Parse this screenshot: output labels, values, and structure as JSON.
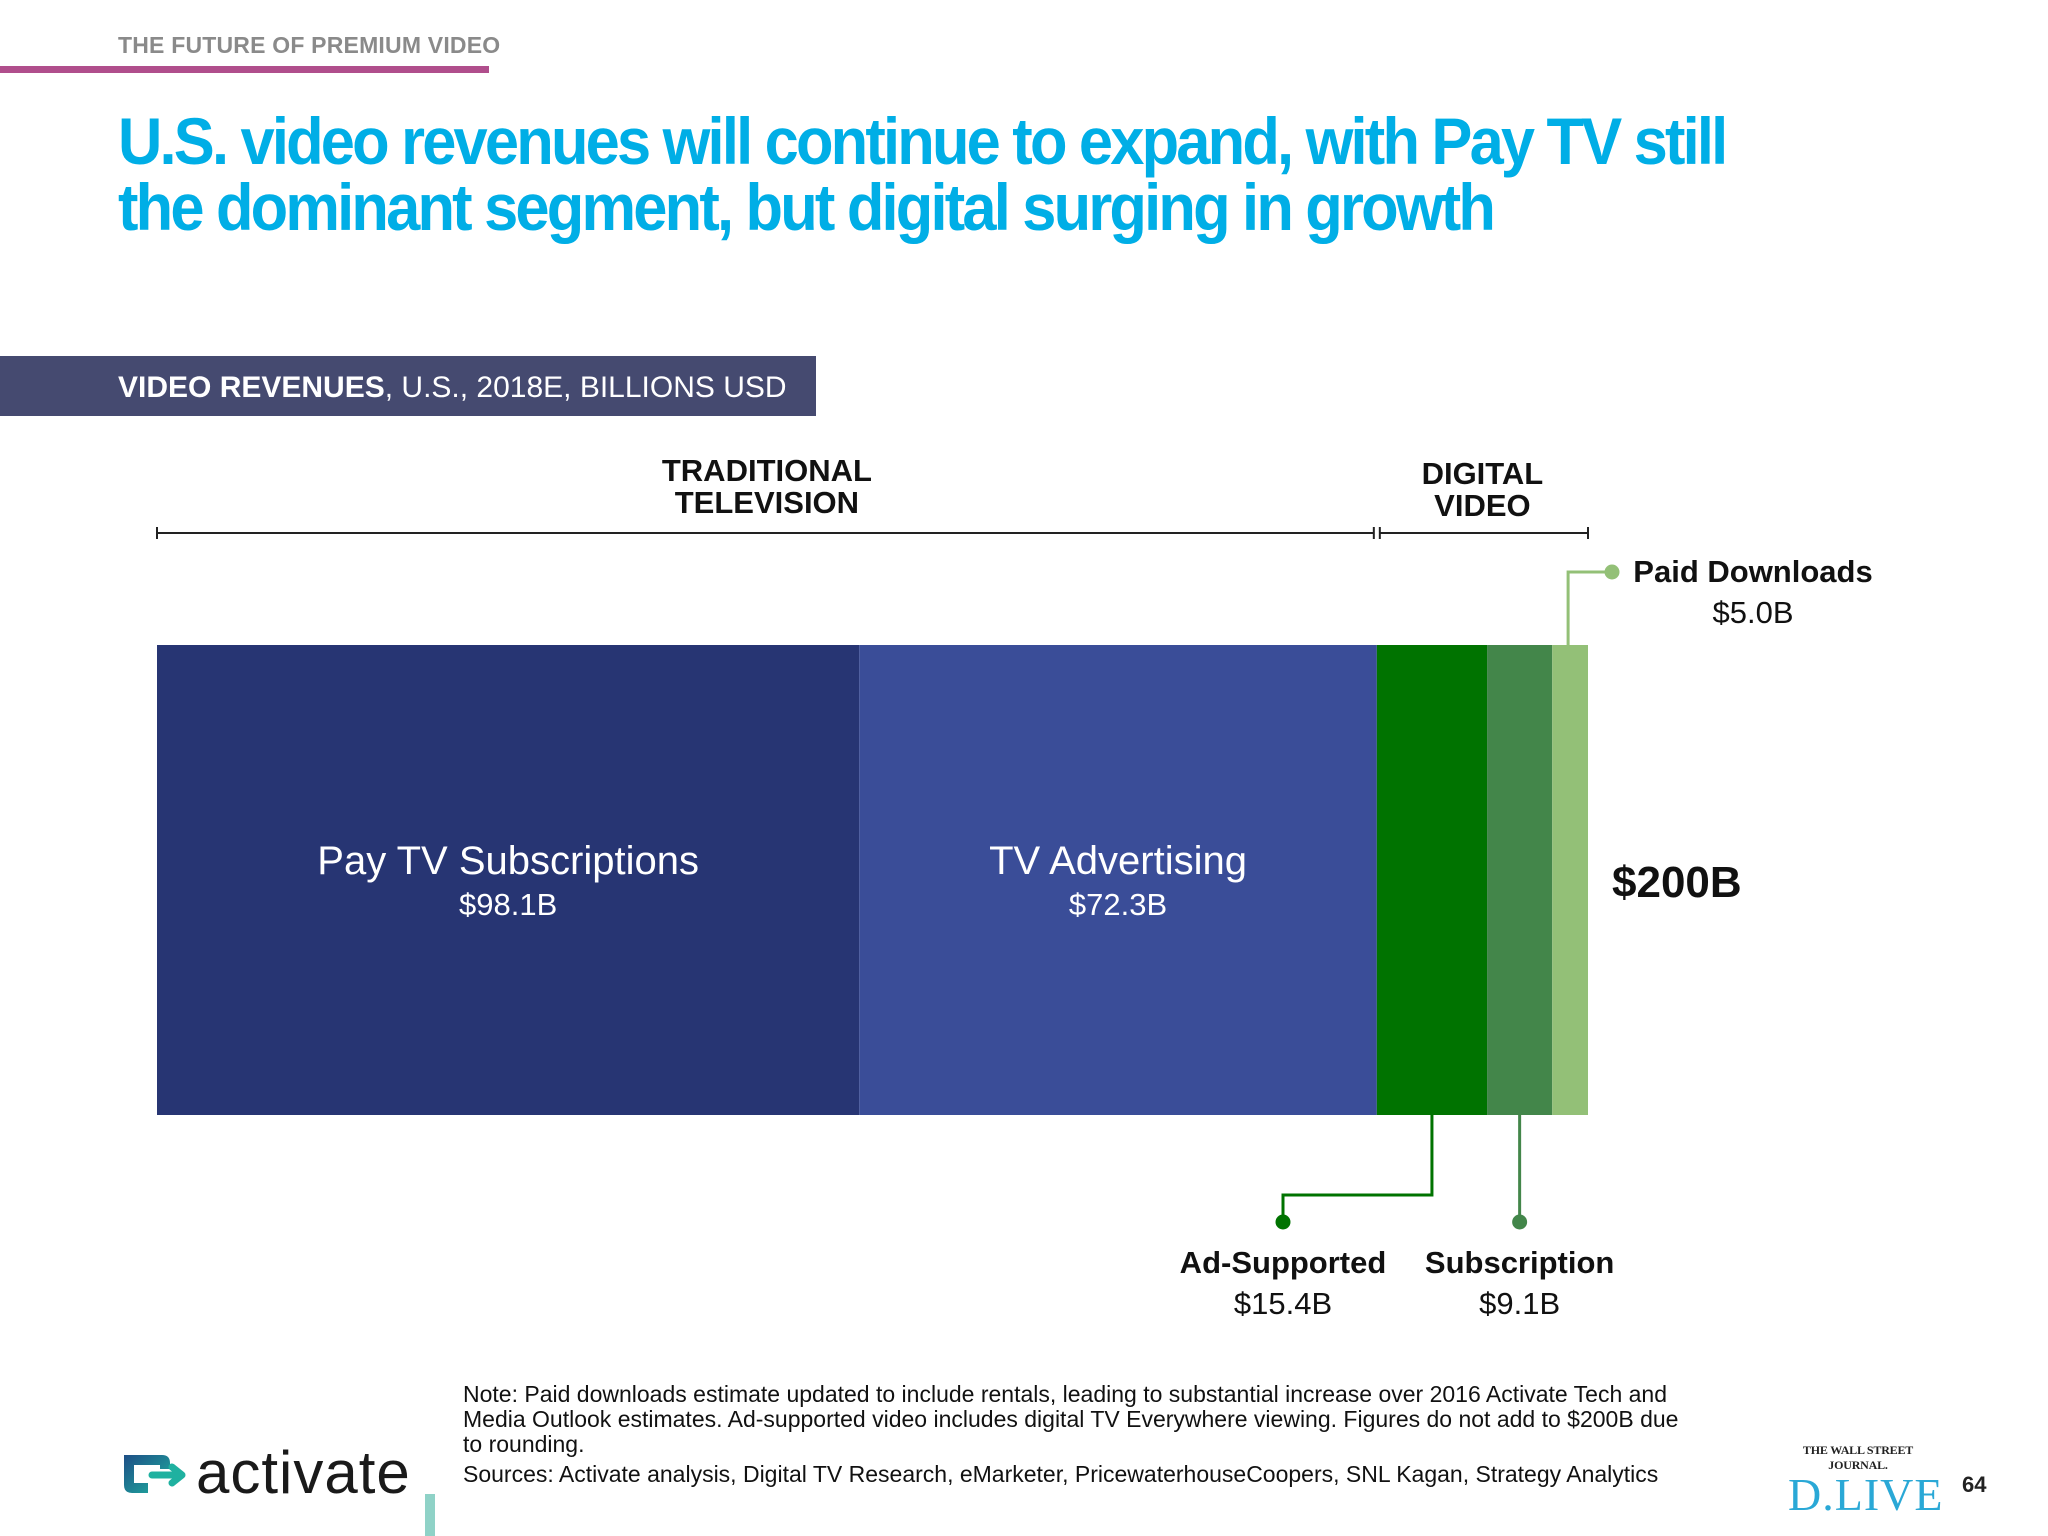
{
  "header": {
    "eyebrow": "THE FUTURE OF PREMIUM VIDEO",
    "title": "U.S. video revenues will continue to expand, with Pay TV still the dominant segment, but digital surging in growth"
  },
  "panel": {
    "title_bold": "VIDEO REVENUES",
    "title_rest": ", U.S., 2018E, BILLIONS USD"
  },
  "chart_data": {
    "type": "bar",
    "orientation": "horizontal-stacked",
    "title": "VIDEO REVENUES, U.S., 2018E, BILLIONS USD",
    "groups": [
      {
        "label": "TRADITIONAL TELEVISION",
        "line1": "TRADITIONAL",
        "line2": "TELEVISION",
        "members": [
          "Pay TV Subscriptions",
          "TV Advertising"
        ]
      },
      {
        "label": "DIGITAL VIDEO",
        "line1": "DIGITAL",
        "line2": "VIDEO",
        "members": [
          "Ad-Supported",
          "Subscription",
          "Paid Downloads"
        ]
      }
    ],
    "segments": [
      {
        "name": "Pay TV Subscriptions",
        "value": 98.1,
        "value_label": "$98.1B",
        "color": "#273573"
      },
      {
        "name": "TV Advertising",
        "value": 72.3,
        "value_label": "$72.3B",
        "color": "#3a4d98"
      },
      {
        "name": "Ad-Supported",
        "value": 15.4,
        "value_label": "$15.4B",
        "color": "#007300"
      },
      {
        "name": "Subscription",
        "value": 9.1,
        "value_label": "$9.1B",
        "color": "#43864a"
      },
      {
        "name": "Paid Downloads",
        "value": 5.0,
        "value_label": "$5.0B",
        "color": "#93c077"
      }
    ],
    "total_label": "$200B"
  },
  "footer": {
    "note": "Note: Paid downloads estimate updated to include rentals, leading to substantial increase over 2016 Activate Tech and Media Outlook estimates. Ad-supported video includes digital TV Everywhere viewing. Figures do not add to $200B due to rounding.",
    "sources": "Sources: Activate analysis, Digital TV Research, eMarketer, PricewaterhouseCoopers, SNL Kagan, Strategy Analytics",
    "logo_text": "activate",
    "partner_small": "THE WALL STREET JOURNAL.",
    "partner_big": "D.LIVE",
    "page_number": "64"
  },
  "colors": {
    "accent_title": "#00aee6",
    "eyebrow_rule": "#b04e8c",
    "panel_bar": "#454a70"
  }
}
